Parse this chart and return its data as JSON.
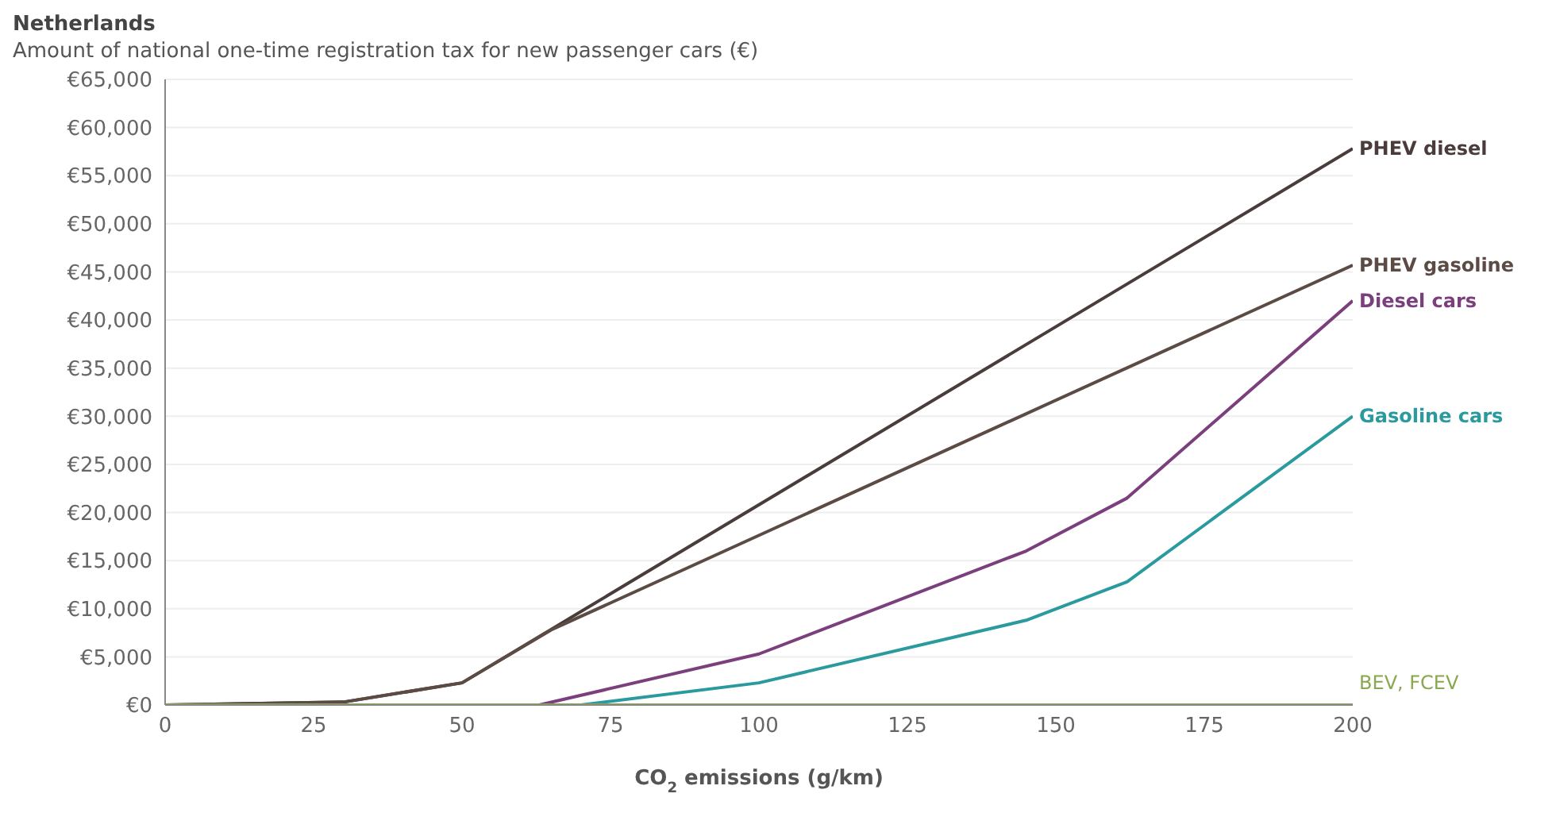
{
  "chart_data": {
    "type": "line",
    "title": "Netherlands",
    "subtitle": "Amount of national one-time registration tax for new passenger cars (€)",
    "xlabel": "CO$_{2}$ emissions (g/km)",
    "xlim": [
      0,
      200
    ],
    "xticks": [
      0,
      25,
      50,
      75,
      100,
      125,
      150,
      175,
      200
    ],
    "ylim": [
      0,
      65000
    ],
    "yticks": [
      {
        "value": 0,
        "label": "€0"
      },
      {
        "value": 5000,
        "label": "€5,000"
      },
      {
        "value": 10000,
        "label": "€10,000"
      },
      {
        "value": 15000,
        "label": "€15,000"
      },
      {
        "value": 20000,
        "label": "€20,000"
      },
      {
        "value": 25000,
        "label": "€25,000"
      },
      {
        "value": 30000,
        "label": "€30,000"
      },
      {
        "value": 35000,
        "label": "€35,000"
      },
      {
        "value": 40000,
        "label": "€40,000"
      },
      {
        "value": 45000,
        "label": "€45,000"
      },
      {
        "value": 50000,
        "label": "€50,000"
      },
      {
        "value": 55000,
        "label": "€55,000"
      },
      {
        "value": 60000,
        "label": "€60,000"
      },
      {
        "value": 65000,
        "label": "€65,000"
      }
    ],
    "grid": "y",
    "marker": "none",
    "line_style": "solid",
    "series": [
      {
        "name": "PHEV diesel",
        "color": "#4a3c3a",
        "x": [
          0,
          30,
          50,
          200
        ],
        "values": [
          0,
          300,
          2300,
          57800
        ]
      },
      {
        "name": "PHEV gasoline",
        "color": "#5c4b45",
        "x": [
          0,
          30,
          50,
          65,
          200
        ],
        "values": [
          0,
          300,
          2300,
          7800,
          45700
        ]
      },
      {
        "name": "Diesel cars",
        "color": "#7b3f7d",
        "x": [
          0,
          63,
          100,
          145,
          162,
          200
        ],
        "values": [
          0,
          0,
          5300,
          16000,
          21500,
          42000
        ]
      },
      {
        "name": "Gasoline cars",
        "color": "#2a9a9e",
        "x": [
          0,
          70,
          100,
          145,
          162,
          200
        ],
        "values": [
          0,
          0,
          2300,
          8800,
          12800,
          30000
        ]
      },
      {
        "name": "BEV, FCEV",
        "color": "#8aa84f",
        "x": [
          0,
          200
        ],
        "values": [
          0,
          0
        ]
      }
    ]
  }
}
